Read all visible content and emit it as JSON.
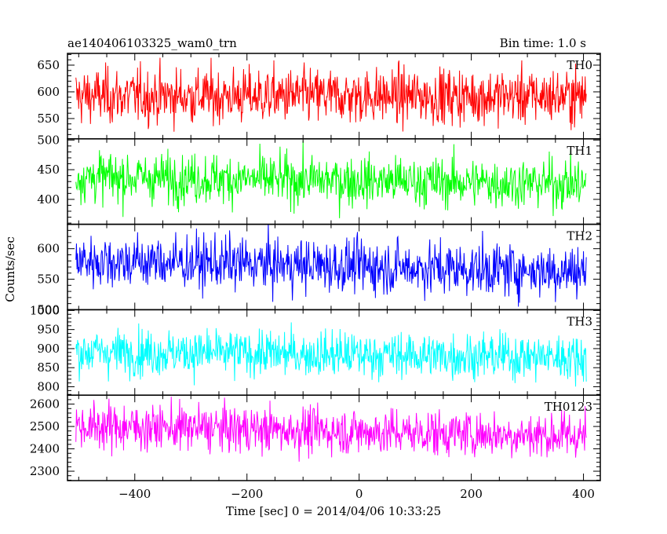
{
  "chart_data": {
    "type": "line",
    "title_left": "ae140406103325_wam0_trn",
    "title_right": "Bin time: 1.0 s",
    "xlabel": "Time [sec] 0 = 2014/04/06 10:33:25",
    "ylabel": "Counts/sec",
    "xlim": [
      -520,
      430
    ],
    "x_data_range": [
      -505,
      405
    ],
    "x_ticks": [
      -400,
      -200,
      0,
      200,
      400
    ],
    "x_tick_labels": [
      "−400",
      "−200",
      "0",
      "200",
      "400"
    ],
    "grid": false,
    "panels": [
      {
        "name": "TH0",
        "color": "#ff0000",
        "ylim": [
          512,
          672
        ],
        "yticks": [
          550,
          600,
          650
        ],
        "mean": 592,
        "sigma": 26,
        "trend": 0
      },
      {
        "name": "TH1",
        "color": "#00ff00",
        "ylim": [
          358,
          502
        ],
        "yticks": [
          400,
          450,
          500
        ],
        "mean": 432,
        "sigma": 21,
        "trend": -12
      },
      {
        "name": "TH2",
        "color": "#0000ff",
        "ylim": [
          500,
          640
        ],
        "yticks": [
          500,
          550,
          600
        ],
        "mean": 572,
        "sigma": 22,
        "trend": -18
      },
      {
        "name": "TH3",
        "color": "#00ffff",
        "ylim": [
          778,
          1002
        ],
        "yticks": [
          800,
          850,
          900,
          950,
          1000
        ],
        "mean": 885,
        "sigma": 30,
        "trend": -15
      },
      {
        "name": "TH0123",
        "color": "#ff00ff",
        "ylim": [
          2258,
          2640
        ],
        "yticks": [
          2300,
          2400,
          2500,
          2600
        ],
        "mean": 2480,
        "sigma": 52,
        "trend": -45
      }
    ]
  }
}
